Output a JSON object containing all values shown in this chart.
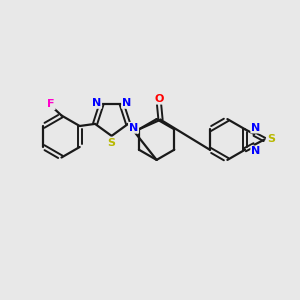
{
  "background_color": "#e8e8e8",
  "bond_color": "#1a1a1a",
  "atom_colors": {
    "N": "#0000ff",
    "S": "#b8b800",
    "F": "#ff00cc",
    "O": "#ff0000"
  },
  "figsize": [
    3.0,
    3.0
  ],
  "dpi": 100,
  "xlim": [
    0,
    10
  ],
  "ylim": [
    0,
    10
  ]
}
